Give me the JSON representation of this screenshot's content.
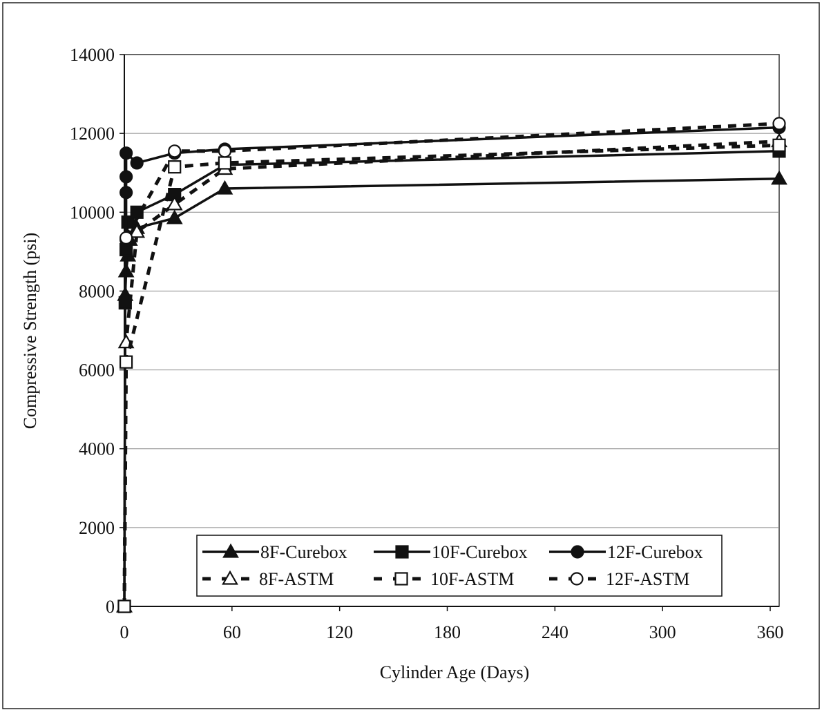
{
  "chart_data": {
    "type": "line",
    "xlabel": "Cylinder Age (Days)",
    "ylabel": "Compressive Strength (psi)",
    "xlim": [
      0,
      365
    ],
    "ylim": [
      0,
      14000
    ],
    "xticks": [
      0,
      60,
      120,
      180,
      240,
      300,
      360
    ],
    "yticks": [
      0,
      2000,
      4000,
      6000,
      8000,
      10000,
      12000,
      14000
    ],
    "grid": "horizontal",
    "legend_position": "bottom-center",
    "series": [
      {
        "name": "8F-Curebox",
        "style": "solid",
        "marker": "triangle-filled",
        "x": [
          0,
          0.5,
          1,
          2,
          3,
          7,
          28,
          56,
          365
        ],
        "y": [
          0,
          7900,
          8500,
          8900,
          9300,
          9600,
          9850,
          10600,
          10850
        ]
      },
      {
        "name": "10F-Curebox",
        "style": "solid",
        "marker": "square-filled",
        "x": [
          0,
          0.5,
          1,
          2,
          7,
          28,
          56,
          365
        ],
        "y": [
          0,
          7700,
          9050,
          9750,
          10000,
          10450,
          11200,
          11550
        ]
      },
      {
        "name": "12F-Curebox",
        "style": "solid",
        "marker": "circle-filled",
        "x": [
          1,
          1,
          1,
          1,
          7,
          28,
          56,
          365
        ],
        "y": [
          9300,
          10500,
          10900,
          11500,
          11250,
          11500,
          11600,
          12150
        ]
      },
      {
        "name": "8F-ASTM",
        "style": "dashed",
        "marker": "triangle-open",
        "x": [
          0,
          1,
          7,
          28,
          56,
          365
        ],
        "y": [
          0,
          6700,
          9500,
          10200,
          11100,
          11800
        ]
      },
      {
        "name": "10F-ASTM",
        "style": "dashed",
        "marker": "square-open",
        "x": [
          0,
          1,
          28,
          56,
          365
        ],
        "y": [
          0,
          6200,
          11150,
          11250,
          11700
        ]
      },
      {
        "name": "12F-ASTM",
        "style": "dashed",
        "marker": "circle-open",
        "x": [
          1,
          28,
          56,
          365
        ],
        "y": [
          9350,
          11550,
          11550,
          12250
        ]
      }
    ]
  }
}
